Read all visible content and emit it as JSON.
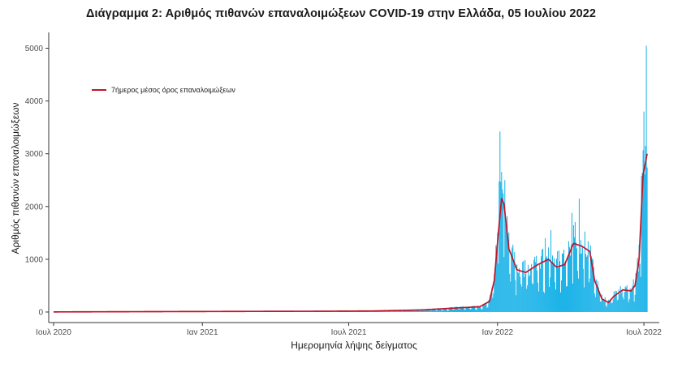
{
  "chart_data": {
    "type": "bar",
    "title": "Διάγραμμα 2: Αριθμός πιθανών επαναλοιμώξεων COVID-19 στην Ελλάδα, 05 Ιουλίου 2022",
    "xlabel": "Ημερομηνία λήψης δείγματος",
    "ylabel": "Αριθμός πιθανών επαναλοιμώξεων",
    "x_range": [
      "2020-06-25",
      "2022-07-20"
    ],
    "ylim": [
      -200,
      5300
    ],
    "x_ticks": [
      {
        "date": "2020-07-01",
        "label": "Ιουλ 2020"
      },
      {
        "date": "2021-01-01",
        "label": "Ιαν 2021"
      },
      {
        "date": "2021-07-01",
        "label": "Ιουλ 2021"
      },
      {
        "date": "2022-01-01",
        "label": "Ιαν 2022"
      },
      {
        "date": "2022-07-01",
        "label": "Ιουλ 2022"
      }
    ],
    "y_ticks": [
      0,
      1000,
      2000,
      3000,
      4000,
      5000
    ],
    "grid": false,
    "legend_position": "top-left",
    "series": [
      {
        "kind": "bar",
        "color": "#1fb4e8",
        "data_start": "2020-07-01",
        "data_end": "2022-07-05",
        "weekly_avg_anchors": [
          [
            "2020-07-01",
            2
          ],
          [
            "2020-11-15",
            8
          ],
          [
            "2021-03-01",
            12
          ],
          [
            "2021-06-01",
            15
          ],
          [
            "2021-08-01",
            20
          ],
          [
            "2021-10-01",
            40
          ],
          [
            "2021-11-15",
            80
          ],
          [
            "2021-12-10",
            100
          ],
          [
            "2021-12-22",
            200
          ],
          [
            "2021-12-28",
            600
          ],
          [
            "2022-01-02",
            1500
          ],
          [
            "2022-01-06",
            2150
          ],
          [
            "2022-01-09",
            2050
          ],
          [
            "2022-01-15",
            1200
          ],
          [
            "2022-01-25",
            800
          ],
          [
            "2022-02-05",
            750
          ],
          [
            "2022-02-20",
            900
          ],
          [
            "2022-03-05",
            1000
          ],
          [
            "2022-03-15",
            850
          ],
          [
            "2022-03-25",
            900
          ],
          [
            "2022-04-05",
            1300
          ],
          [
            "2022-04-15",
            1250
          ],
          [
            "2022-04-25",
            1150
          ],
          [
            "2022-05-01",
            600
          ],
          [
            "2022-05-10",
            250
          ],
          [
            "2022-05-18",
            180
          ],
          [
            "2022-05-25",
            300
          ],
          [
            "2022-06-05",
            420
          ],
          [
            "2022-06-15",
            400
          ],
          [
            "2022-06-20",
            500
          ],
          [
            "2022-06-25",
            1000
          ],
          [
            "2022-06-30",
            2600
          ],
          [
            "2022-07-05",
            3000
          ]
        ],
        "peaks": [
          [
            "2022-01-04",
            3420
          ],
          [
            "2022-01-03",
            2480
          ],
          [
            "2022-01-10",
            2500
          ],
          [
            "2022-03-01",
            1400
          ],
          [
            "2022-03-08",
            1550
          ],
          [
            "2022-04-03",
            1880
          ],
          [
            "2022-04-12",
            2150
          ],
          [
            "2022-06-28",
            2580
          ],
          [
            "2022-07-01",
            3800
          ],
          [
            "2022-07-04",
            5050
          ],
          [
            "2022-07-03",
            3150
          ]
        ]
      },
      {
        "kind": "line",
        "name": "7ήμερος μέσος όρος επαναλοιμώξεων",
        "color": "#c0152a",
        "source": "weekly_avg_anchors"
      }
    ]
  }
}
